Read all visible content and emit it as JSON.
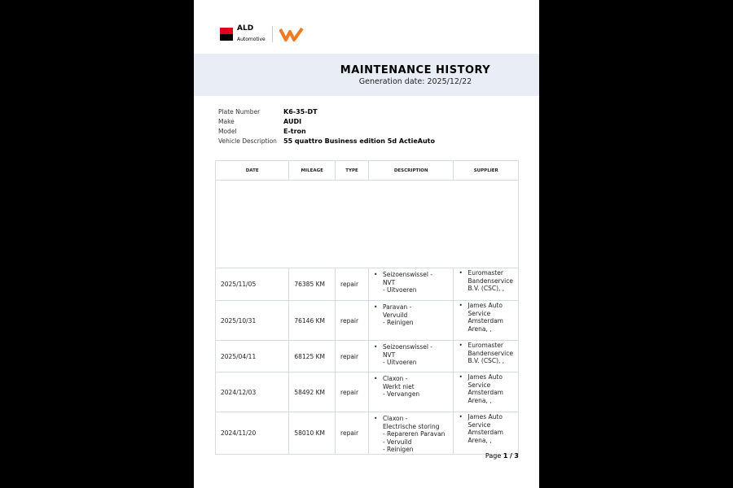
{
  "logo": {
    "brand": "ALD",
    "sub": "Automotive",
    "partner": "LeasePlan W"
  },
  "header": {
    "title": "MAINTENANCE HISTORY",
    "generation": "Generation date: 2025/12/22"
  },
  "vehicle": [
    {
      "label": "Plate Number",
      "value": "K6-35-DT"
    },
    {
      "label": "Make",
      "value": "AUDI"
    },
    {
      "label": "Model",
      "value": "E-tron"
    },
    {
      "label": "Vehicle Description",
      "value": "55 quattro Business edition 5d ActieAuto"
    }
  ],
  "columns": [
    "DATE",
    "MILEAGE",
    "TYPE",
    "DESCRIPTION",
    "SUPPLIER"
  ],
  "rows": [
    {
      "date": "2025/11/05",
      "mileage": "76385 KM",
      "type": "repair",
      "description": "Seizoenswissel  -\nNVT\n- Uitvoeren",
      "supplier": "Euromaster\nBandenservice\nB.V. (CSC), ,"
    },
    {
      "date": "2025/10/31",
      "mileage": "76146 KM",
      "type": "repair",
      "description": "Paravan        -\nVervuild\n- Reinigen",
      "supplier": "James Auto\nService\nAmsterdam\nArena, ,"
    },
    {
      "date": "2025/04/11",
      "mileage": "68125 KM",
      "type": "repair",
      "description": "Seizoenswissel  -\nNVT\n- Uitvoeren",
      "supplier": "Euromaster\nBandenservice\nB.V. (CSC), ,"
    },
    {
      "date": "2024/12/03",
      "mileage": "58492 KM",
      "type": "repair",
      "description": "Claxon         -\nWerkt niet\n- Vervangen",
      "supplier": "James Auto\nService\nAmsterdam\nArena, ,"
    },
    {
      "date": "2024/11/20",
      "mileage": "58010 KM",
      "type": "repair",
      "description": "Claxon         -\nElectrische storing\n- Repareren  Paravan\n- Vervuild\n- Reinigen",
      "supplier": "James Auto\nService\nAmsterdam\nArena, ,"
    }
  ],
  "footer": {
    "page_label": "Page",
    "current": "1",
    "sep": "/",
    "total": "3"
  }
}
